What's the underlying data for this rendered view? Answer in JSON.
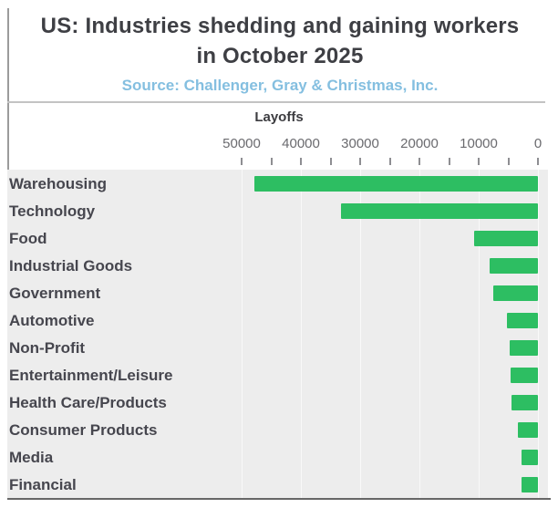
{
  "title": {
    "line1": "US: Industries shedding and gaining workers",
    "line2": "in October 2025"
  },
  "source": "Source: Challenger, Gray & Christmas, Inc.",
  "axis_header": "Layoffs",
  "colors": {
    "bar": "#2dbe62",
    "title_text": "#3e3f44",
    "source_text": "#84bfe0",
    "plot_background": "#ededed",
    "axis_line": "#676767"
  },
  "chart_data": {
    "type": "bar",
    "orientation": "horizontal",
    "title": "US: Industries shedding and gaining workers in October 2025",
    "subtitle": "Source: Challenger, Gray & Christmas, Inc.",
    "xlabel": "Layoffs",
    "axis_reversed": true,
    "xlim": [
      0,
      50000
    ],
    "tick_labels": [
      50000,
      40000,
      30000,
      20000,
      10000,
      0
    ],
    "minor_tick_step": 5000,
    "grid": "subtle-vertical",
    "legend": "none",
    "categories": [
      "Warehousing",
      "Technology",
      "Food",
      "Industrial Goods",
      "Government",
      "Automotive",
      "Non-Profit",
      "Entertainment/Leisure",
      "Health Care/Products",
      "Consumer Products",
      "Media",
      "Financial"
    ],
    "values": [
      47800,
      33300,
      10800,
      8200,
      7500,
      5200,
      4800,
      4600,
      4400,
      3400,
      2800,
      2800
    ]
  }
}
